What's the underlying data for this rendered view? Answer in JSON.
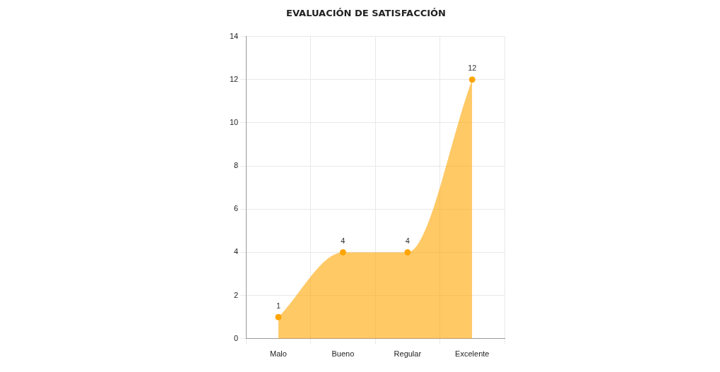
{
  "chart_data": {
    "type": "area",
    "title": "EVALUACIÓN DE SATISFACCIÓN",
    "categories": [
      "Malo",
      "Bueno",
      "Regular",
      "Excelente"
    ],
    "series": [
      {
        "color": "#ffa500",
        "values": [
          1,
          4,
          4,
          12
        ]
      }
    ],
    "ylim": [
      0,
      14
    ],
    "yticks": [
      0,
      2,
      4,
      6,
      8,
      10,
      12,
      14
    ],
    "grid": true,
    "marker": "circle",
    "data_labels": true
  }
}
